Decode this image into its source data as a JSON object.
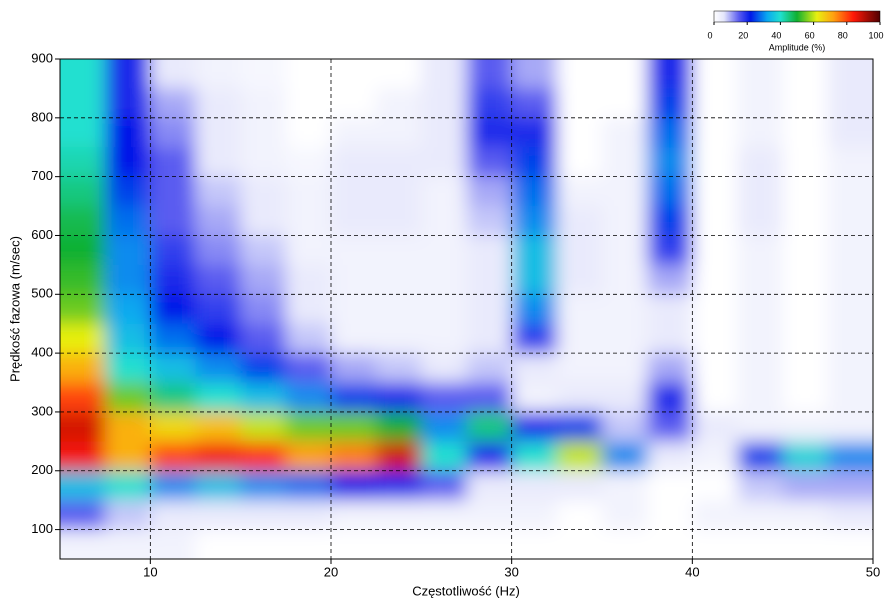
{
  "chart_data": {
    "type": "heatmap",
    "xlabel": "Częstotliwość (Hz)",
    "ylabel": "Prędkość fazowa (m/sec)",
    "xlim": [
      5,
      50
    ],
    "ylim": [
      50,
      900
    ],
    "xticks": [
      10,
      20,
      30,
      40,
      50
    ],
    "yticks": [
      100,
      200,
      300,
      400,
      500,
      600,
      700,
      800,
      900
    ],
    "grid": true,
    "colorbar_label": "Amplitude (%)",
    "clim": [
      0,
      100
    ],
    "cticks": [
      0,
      20,
      40,
      60,
      80,
      100
    ],
    "colorscale": [
      [
        0,
        "#ffffff"
      ],
      [
        6,
        "#e4e6fb"
      ],
      [
        15,
        "#5a5cf0"
      ],
      [
        22,
        "#0018e8"
      ],
      [
        32,
        "#0aa8f0"
      ],
      [
        40,
        "#20e0d0"
      ],
      [
        50,
        "#10b030"
      ],
      [
        62,
        "#e8f010"
      ],
      [
        72,
        "#ffa010"
      ],
      [
        84,
        "#ff1808"
      ],
      [
        100,
        "#500000"
      ]
    ],
    "x": [
      6.25,
      8.75,
      11.25,
      13.75,
      16.25,
      18.75,
      21.25,
      23.75,
      26.25,
      28.75,
      31.25,
      33.75,
      36.25,
      38.75,
      41.25,
      43.75,
      46.25,
      48.75
    ],
    "y": [
      875,
      825,
      775,
      725,
      675,
      625,
      575,
      525,
      475,
      425,
      375,
      325,
      275,
      225,
      175,
      125,
      75
    ],
    "z": [
      [
        40,
        20,
        5,
        3,
        2,
        0,
        0,
        0,
        5,
        15,
        10,
        0,
        0,
        20,
        0,
        3,
        0,
        5
      ],
      [
        40,
        20,
        10,
        5,
        3,
        0,
        0,
        3,
        5,
        18,
        15,
        0,
        0,
        25,
        0,
        3,
        0,
        5
      ],
      [
        40,
        22,
        12,
        5,
        3,
        0,
        3,
        3,
        5,
        20,
        20,
        0,
        3,
        28,
        0,
        3,
        0,
        5
      ],
      [
        42,
        22,
        15,
        5,
        3,
        2,
        5,
        5,
        5,
        15,
        25,
        0,
        3,
        30,
        0,
        5,
        0,
        3
      ],
      [
        45,
        25,
        15,
        8,
        5,
        3,
        5,
        5,
        3,
        10,
        28,
        3,
        3,
        28,
        0,
        5,
        0,
        3
      ],
      [
        48,
        28,
        15,
        10,
        5,
        3,
        5,
        5,
        3,
        8,
        30,
        5,
        3,
        25,
        0,
        5,
        0,
        3
      ],
      [
        50,
        30,
        18,
        12,
        8,
        3,
        3,
        3,
        3,
        5,
        35,
        5,
        3,
        18,
        0,
        3,
        0,
        3
      ],
      [
        52,
        30,
        20,
        15,
        10,
        5,
        3,
        3,
        3,
        5,
        35,
        5,
        3,
        10,
        0,
        3,
        0,
        3
      ],
      [
        55,
        32,
        22,
        18,
        12,
        5,
        3,
        3,
        3,
        5,
        30,
        3,
        3,
        5,
        0,
        3,
        0,
        3
      ],
      [
        62,
        35,
        28,
        22,
        15,
        8,
        3,
        3,
        3,
        5,
        18,
        3,
        3,
        5,
        0,
        3,
        0,
        3
      ],
      [
        70,
        40,
        35,
        30,
        25,
        15,
        10,
        8,
        5,
        8,
        5,
        3,
        3,
        10,
        0,
        3,
        0,
        3
      ],
      [
        80,
        55,
        45,
        40,
        35,
        30,
        25,
        20,
        15,
        15,
        3,
        5,
        5,
        20,
        0,
        3,
        0,
        3
      ],
      [
        88,
        70,
        65,
        68,
        60,
        55,
        55,
        50,
        30,
        45,
        20,
        25,
        8,
        15,
        5,
        3,
        3,
        3
      ],
      [
        85,
        70,
        80,
        85,
        82,
        72,
        75,
        88,
        40,
        20,
        40,
        60,
        30,
        5,
        3,
        25,
        38,
        30
      ],
      [
        35,
        40,
        30,
        35,
        30,
        28,
        22,
        20,
        15,
        5,
        5,
        5,
        3,
        0,
        0,
        8,
        10,
        10
      ],
      [
        15,
        8,
        5,
        5,
        5,
        5,
        3,
        3,
        3,
        3,
        3,
        0,
        3,
        0,
        3,
        3,
        3,
        5
      ],
      [
        3,
        3,
        3,
        0,
        0,
        0,
        0,
        0,
        0,
        0,
        0,
        0,
        0,
        0,
        0,
        0,
        0,
        0
      ]
    ]
  }
}
